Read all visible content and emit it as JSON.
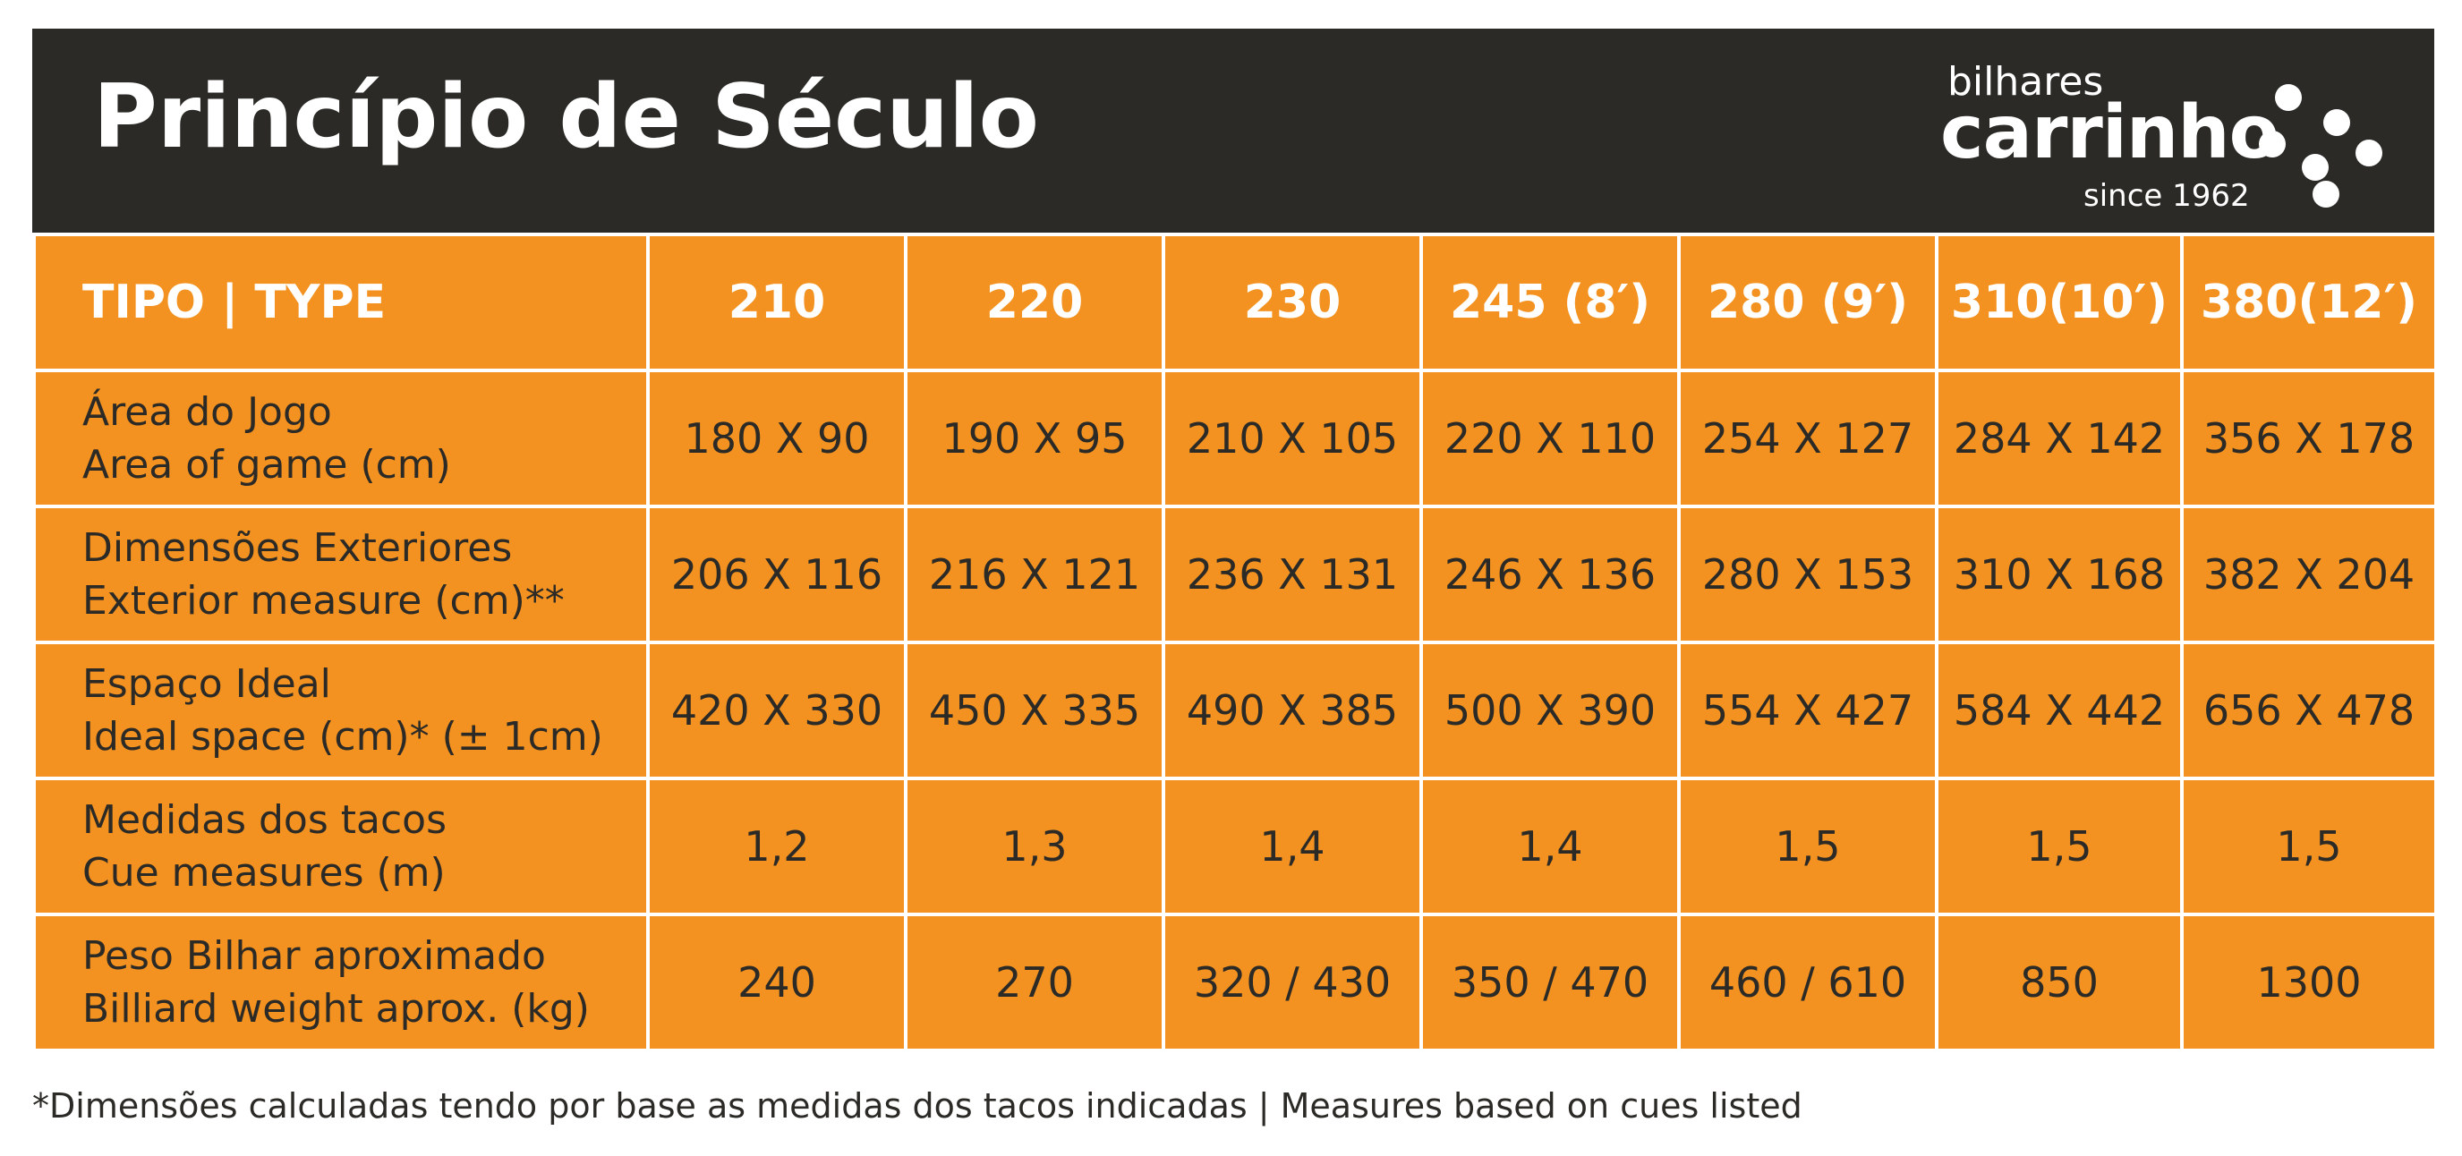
{
  "header": {
    "title": "Princípio de Século",
    "logo": {
      "top_text": "bilhares",
      "main_text": "carrinho",
      "since_text": "since 1962"
    }
  },
  "table": {
    "header_label": "TIPO | TYPE",
    "columns": [
      "210",
      "220",
      "230",
      "245 (8′)",
      "280 (9′)",
      "310(10′)",
      "380(12′)"
    ],
    "rows": [
      {
        "label_pt": "Área do Jogo",
        "label_en": "Area of game (cm)",
        "values": [
          "180 X 90",
          "190 X 95",
          "210 X 105",
          "220 X 110",
          "254 X 127",
          "284 X 142",
          "356 X 178"
        ]
      },
      {
        "label_pt": "Dimensões Exteriores",
        "label_en": "Exterior measure (cm)**",
        "values": [
          "206 X 116",
          "216 X 121",
          "236 X 131",
          "246 X 136",
          "280 X 153",
          "310 X 168",
          "382 X 204"
        ]
      },
      {
        "label_pt": "Espaço Ideal",
        "label_en": "Ideal space (cm)* (± 1cm)",
        "values": [
          "420 X 330",
          "450 X 335",
          "490 X 385",
          "500 X 390",
          "554 X 427",
          "584 X 442",
          "656 X 478"
        ]
      },
      {
        "label_pt": "Medidas dos tacos",
        "label_en": "Cue measures (m)",
        "values": [
          "1,2",
          "1,3",
          "1,4",
          "1,4",
          "1,5",
          "1,5",
          "1,5"
        ]
      },
      {
        "label_pt": "Peso Bilhar aproximado",
        "label_en": "Billiard weight aprox. (kg)",
        "values": [
          "240",
          "270",
          "320 / 430",
          "350 / 470",
          "460 / 610",
          "850",
          "1300"
        ]
      }
    ]
  },
  "footnote": "*Dimensões calculadas tendo por base as medidas dos tacos indicadas | Measures based on cues listed",
  "colors": {
    "header_bg": "#2b2a26",
    "table_bg": "#f39220",
    "text_dark": "#2b2a26",
    "text_light": "#ffffff"
  }
}
